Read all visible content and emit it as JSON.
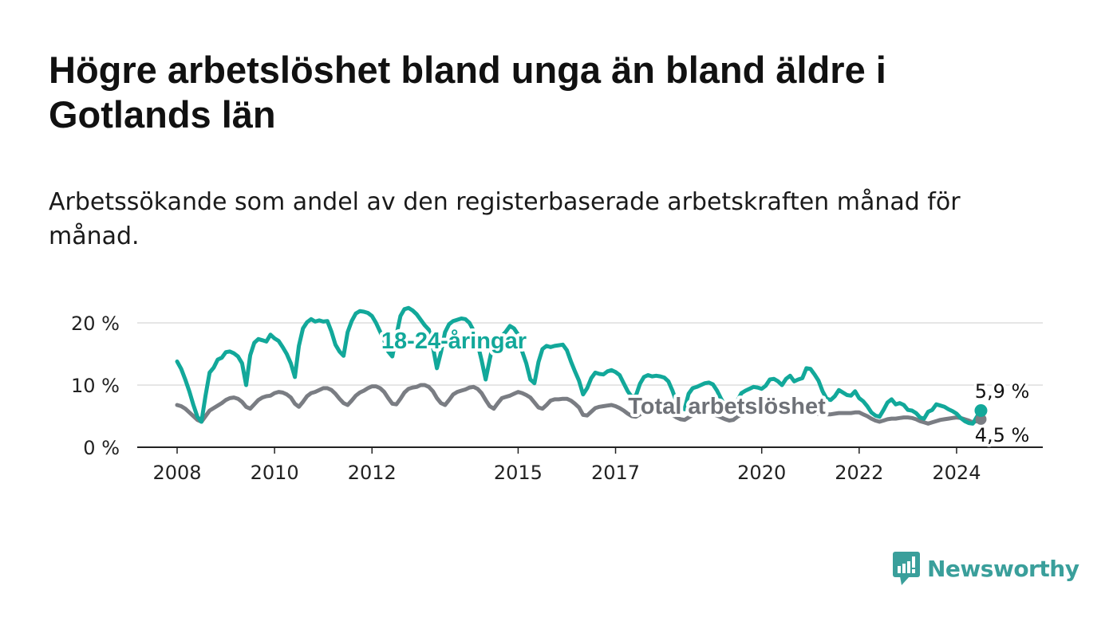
{
  "header": {
    "title": "Högre arbetslöshet bland unga än bland äldre i Gotlands län",
    "subtitle": "Arbetssökande som andel av den registerbaserade arbetskraften månad för månad."
  },
  "brand": {
    "name": "Newsworthy",
    "color": "#3a9f9b"
  },
  "chart_data": {
    "type": "line",
    "x_unit": "month",
    "x_range": [
      "2008-01",
      "2025-01"
    ],
    "ylim": [
      0,
      20
    ],
    "y_ticks": [
      {
        "value": 0,
        "label": "0 %"
      },
      {
        "value": 10,
        "label": "10 %"
      },
      {
        "value": 20,
        "label": "20 %"
      }
    ],
    "x_ticks": [
      "2008",
      "2010",
      "2012",
      "2015",
      "2017",
      "2020",
      "2022",
      "2024"
    ],
    "grid": true,
    "series": [
      {
        "name": "18-24-åringar",
        "color": "#12a89a",
        "start": "2008-01",
        "end_label": "5,9 %",
        "values": [
          13.8,
          12.6,
          10.9,
          9.0,
          6.8,
          4.9,
          4.1,
          8.3,
          12.0,
          12.8,
          14.1,
          14.4,
          15.3,
          15.4,
          15.1,
          14.6,
          13.5,
          10.0,
          14.8,
          16.8,
          17.4,
          17.2,
          17.0,
          18.1,
          17.5,
          17.1,
          16.1,
          15.0,
          13.5,
          11.3,
          16.3,
          19.1,
          20.1,
          20.6,
          20.2,
          20.4,
          20.2,
          20.3,
          18.6,
          16.5,
          15.4,
          14.7,
          18.5,
          20.3,
          21.5,
          21.9,
          21.8,
          21.6,
          21.1,
          20.0,
          18.6,
          17.2,
          15.4,
          14.6,
          18.0,
          21.1,
          22.2,
          22.4,
          22.0,
          21.4,
          20.5,
          19.6,
          18.9,
          16.1,
          12.7,
          15.3,
          18.5,
          19.8,
          20.3,
          20.5,
          20.7,
          20.6,
          20.0,
          18.8,
          16.7,
          14.0,
          10.9,
          14.1,
          17.1,
          17.8,
          17.9,
          18.6,
          19.5,
          19.1,
          18.1,
          15.4,
          13.5,
          10.9,
          10.3,
          13.7,
          15.8,
          16.3,
          16.1,
          16.3,
          16.4,
          16.5,
          15.6,
          13.8,
          12.2,
          10.7,
          8.5,
          9.5,
          11.1,
          12.0,
          11.8,
          11.7,
          12.2,
          12.4,
          12.1,
          11.6,
          10.3,
          9.0,
          8.1,
          8.3,
          10.2,
          11.3,
          11.6,
          11.4,
          11.5,
          11.4,
          11.2,
          10.6,
          9.1,
          7.3,
          6.4,
          6.1,
          8.6,
          9.5,
          9.7,
          10.0,
          10.3,
          10.4,
          10.1,
          9.1,
          7.8,
          6.6,
          5.8,
          5.6,
          7.5,
          8.7,
          9.1,
          9.4,
          9.7,
          9.6,
          9.4,
          9.9,
          10.9,
          11.0,
          10.6,
          10.0,
          11.0,
          11.5,
          10.6,
          10.9,
          11.1,
          12.7,
          12.6,
          11.7,
          10.7,
          9.0,
          7.8,
          7.6,
          8.2,
          9.2,
          8.8,
          8.4,
          8.3,
          9.0,
          7.9,
          7.4,
          6.6,
          5.6,
          5.1,
          4.9,
          6.0,
          7.2,
          7.7,
          6.9,
          7.1,
          6.8,
          6.0,
          5.9,
          5.5,
          4.8,
          4.6,
          5.7,
          6.0,
          6.9,
          6.7,
          6.5,
          6.1,
          5.8,
          5.4,
          4.7,
          4.2,
          3.9,
          3.8,
          4.9,
          5.9
        ]
      },
      {
        "name": "Total arbetslöshet",
        "color": "#7a7d83",
        "start": "2008-01",
        "end_label": "4,5 %",
        "values": [
          6.8,
          6.6,
          6.2,
          5.6,
          5.0,
          4.4,
          4.1,
          5.0,
          5.9,
          6.3,
          6.7,
          7.1,
          7.6,
          7.9,
          8.0,
          7.8,
          7.3,
          6.5,
          6.2,
          6.9,
          7.6,
          8.0,
          8.2,
          8.3,
          8.7,
          8.9,
          8.8,
          8.5,
          8.0,
          7.0,
          6.5,
          7.3,
          8.2,
          8.7,
          8.9,
          9.2,
          9.5,
          9.5,
          9.2,
          8.6,
          7.8,
          7.1,
          6.8,
          7.5,
          8.3,
          8.8,
          9.1,
          9.5,
          9.8,
          9.8,
          9.5,
          8.9,
          7.9,
          7.0,
          6.9,
          7.8,
          8.8,
          9.4,
          9.6,
          9.7,
          10.0,
          10.0,
          9.7,
          9.0,
          7.9,
          7.1,
          6.8,
          7.6,
          8.5,
          8.9,
          9.1,
          9.3,
          9.6,
          9.7,
          9.4,
          8.7,
          7.6,
          6.6,
          6.2,
          7.1,
          7.9,
          8.1,
          8.3,
          8.6,
          8.9,
          8.7,
          8.4,
          8.0,
          7.2,
          6.4,
          6.2,
          6.8,
          7.5,
          7.7,
          7.7,
          7.8,
          7.8,
          7.5,
          7.0,
          6.4,
          5.2,
          5.1,
          5.7,
          6.3,
          6.5,
          6.6,
          6.7,
          6.8,
          6.6,
          6.3,
          5.9,
          5.4,
          5.0,
          4.9,
          5.3,
          5.7,
          5.8,
          5.9,
          6.0,
          6.1,
          5.8,
          5.6,
          5.2,
          4.8,
          4.5,
          4.4,
          4.8,
          5.2,
          5.4,
          5.5,
          5.6,
          5.6,
          5.3,
          5.1,
          4.8,
          4.5,
          4.3,
          4.4,
          4.9,
          5.3,
          5.4,
          5.5,
          5.6,
          5.7,
          5.6,
          5.6,
          5.7,
          5.7,
          5.6,
          5.5,
          5.4,
          5.5,
          5.5,
          5.4,
          5.4,
          5.5,
          5.5,
          5.4,
          5.4,
          5.3,
          5.3,
          5.3,
          5.4,
          5.5,
          5.5,
          5.5,
          5.5,
          5.6,
          5.6,
          5.3,
          5.0,
          4.6,
          4.3,
          4.1,
          4.3,
          4.5,
          4.6,
          4.6,
          4.7,
          4.8,
          4.8,
          4.7,
          4.5,
          4.2,
          4.0,
          3.8,
          4.0,
          4.2,
          4.4,
          4.5,
          4.6,
          4.7,
          4.8,
          4.7,
          4.5,
          4.3,
          4.0,
          4.2,
          4.5
        ]
      }
    ]
  }
}
